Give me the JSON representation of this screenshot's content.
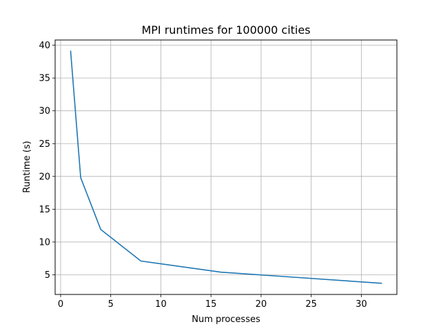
{
  "chart_data": {
    "type": "line",
    "title": "MPI runtimes for 100000 cities",
    "xlabel": "Num processes",
    "ylabel": "Runtime (s)",
    "xlim": [
      -0.55,
      33.55
    ],
    "ylim": [
      2.0,
      40.8
    ],
    "xticks": [
      0,
      5,
      10,
      15,
      20,
      25,
      30
    ],
    "yticks": [
      5,
      10,
      15,
      20,
      25,
      30,
      35,
      40
    ],
    "grid": true,
    "series": [
      {
        "color": "#1f77b4",
        "x": [
          1,
          2,
          4,
          8,
          16,
          32
        ],
        "y": [
          39.1,
          19.8,
          11.9,
          7.1,
          5.4,
          3.7
        ]
      }
    ]
  }
}
